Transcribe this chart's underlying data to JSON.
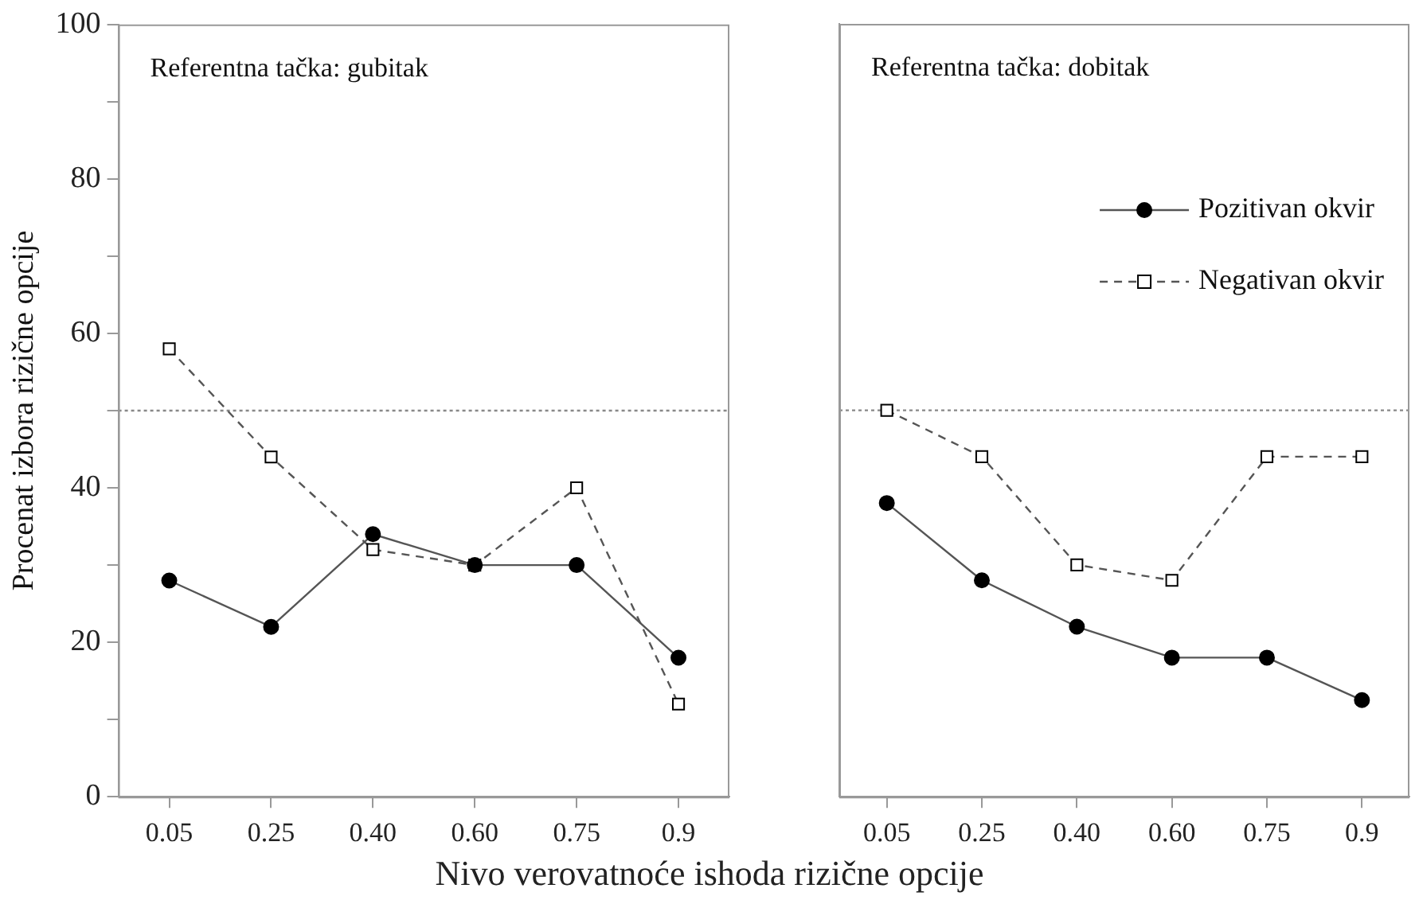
{
  "chart_data": [
    {
      "type": "line",
      "ylabel": "Procenat izbora rizične opcije",
      "xlabel": "Nivo verovatnoće ishoda rizične opcije",
      "annotations": [
        "Referentna tačka: gubitak"
      ],
      "categories": [
        "0.05",
        "0.25",
        "0.40",
        "0.60",
        "0.75",
        "0.9"
      ],
      "series": [
        {
          "color": "#000000",
          "marker": "circle",
          "line_style": "solid",
          "values": [
            28,
            22,
            34,
            30,
            30,
            18
          ]
        },
        {
          "color": "#000000",
          "marker": "square",
          "line_style": "dashed",
          "values": [
            58,
            44,
            32,
            30,
            40,
            12
          ]
        }
      ],
      "ylim": [
        0,
        100
      ],
      "yticks": [
        0,
        {
          "value": 10,
          "label": null
        },
        20,
        {
          "value": 30,
          "label": null
        },
        40,
        {
          "value": 50,
          "label": null
        },
        60,
        {
          "value": 70,
          "label": null
        },
        80,
        {
          "value": 90,
          "label": null
        },
        100
      ],
      "ref_lines": [
        {
          "axis": "y",
          "value": 50,
          "color": "#888888",
          "line_style": "dotted"
        }
      ],
      "grid": false,
      "legend": false
    },
    {
      "type": "line",
      "annotations": [
        "Referentna tačka: dobitak"
      ],
      "categories": [
        "0.05",
        "0.25",
        "0.40",
        "0.60",
        "0.75",
        "0.9"
      ],
      "series": [
        {
          "name": "Pozitivan okvir",
          "color": "#000000",
          "marker": "circle",
          "line_style": "solid",
          "values": [
            38,
            28,
            22,
            18,
            18,
            12.5
          ]
        },
        {
          "name": "Negativan okvir",
          "color": "#000000",
          "marker": "square",
          "line_style": "dashed",
          "values": [
            50,
            44,
            30,
            28,
            44,
            44
          ]
        }
      ],
      "ylim": [
        0,
        100
      ],
      "tick_labels": "x",
      "ref_lines": [
        {
          "axis": "y",
          "value": 50,
          "color": "#888888",
          "line_style": "dotted"
        }
      ],
      "grid": false,
      "legend": "top right"
    }
  ]
}
